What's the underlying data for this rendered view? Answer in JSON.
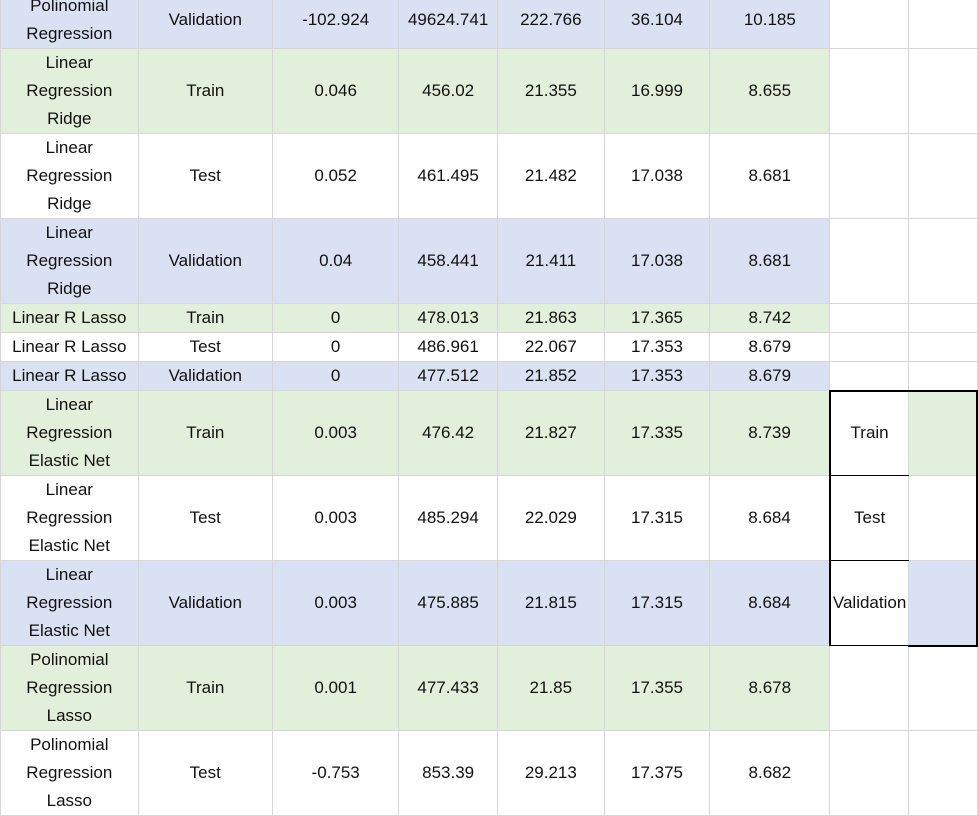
{
  "rows": [
    {
      "model": "Polinomial Regression",
      "split": "Validation",
      "r2": "-102.924",
      "mse": "49624.741",
      "rmse": "222.766",
      "mae": "36.104",
      "last": "10.185",
      "band": "blue",
      "lines": 2,
      "side": null
    },
    {
      "model": "Linear Regression Ridge",
      "split": "Train",
      "r2": "0.046",
      "mse": "456.02",
      "rmse": "21.355",
      "mae": "16.999",
      "last": "8.655",
      "band": "green",
      "lines": 3,
      "side": null
    },
    {
      "model": "Linear Regression Ridge",
      "split": "Test",
      "r2": "0.052",
      "mse": "461.495",
      "rmse": "21.482",
      "mae": "17.038",
      "last": "8.681",
      "band": "white",
      "lines": 3,
      "side": null
    },
    {
      "model": "Linear Regression Ridge",
      "split": "Validation",
      "r2": "0.04",
      "mse": "458.441",
      "rmse": "21.411",
      "mae": "17.038",
      "last": "8.681",
      "band": "blue",
      "lines": 3,
      "side": null
    },
    {
      "model": "Linear R Lasso",
      "split": "Train",
      "r2": "0",
      "mse": "478.013",
      "rmse": "21.863",
      "mae": "17.365",
      "last": "8.742",
      "band": "green",
      "lines": 1,
      "side": null
    },
    {
      "model": "Linear R Lasso",
      "split": "Test",
      "r2": "0",
      "mse": "486.961",
      "rmse": "22.067",
      "mae": "17.353",
      "last": "8.679",
      "band": "white",
      "lines": 1,
      "side": null
    },
    {
      "model": "Linear R Lasso",
      "split": "Validation",
      "r2": "0",
      "mse": "477.512",
      "rmse": "21.852",
      "mae": "17.353",
      "last": "8.679",
      "band": "blue",
      "lines": 1,
      "side": null
    },
    {
      "model": "Linear Regression Elastic Net",
      "split": "Train",
      "r2": "0.003",
      "mse": "476.42",
      "rmse": "21.827",
      "mae": "17.335",
      "last": "8.739",
      "band": "green",
      "lines": 3,
      "side": "Train"
    },
    {
      "model": "Linear Regression Elastic Net",
      "split": "Test",
      "r2": "0.003",
      "mse": "485.294",
      "rmse": "22.029",
      "mae": "17.315",
      "last": "8.684",
      "band": "white",
      "lines": 3,
      "side": "Test"
    },
    {
      "model": "Linear Regression Elastic Net",
      "split": "Validation",
      "r2": "0.003",
      "mse": "475.885",
      "rmse": "21.815",
      "mae": "17.315",
      "last": "8.684",
      "band": "blue",
      "lines": 3,
      "side": "Validation"
    },
    {
      "model": "Polinomial Regression Lasso",
      "split": "Train",
      "r2": "0.001",
      "mse": "477.433",
      "rmse": "21.85",
      "mae": "17.355",
      "last": "8.678",
      "band": "green",
      "lines": 3,
      "side": null
    },
    {
      "model": "Polinomial Regression Lasso",
      "split": "Test",
      "r2": "-0.753",
      "mse": "853.39",
      "rmse": "29.213",
      "mae": "17.375",
      "last": "8.682",
      "band": "white",
      "lines": 3,
      "side": null
    }
  ],
  "colors": {
    "green": "#e2efda",
    "blue": "#d9e1f2",
    "white": "#ffffff",
    "gridline": "#d6d6d6",
    "box_border": "#000000"
  }
}
